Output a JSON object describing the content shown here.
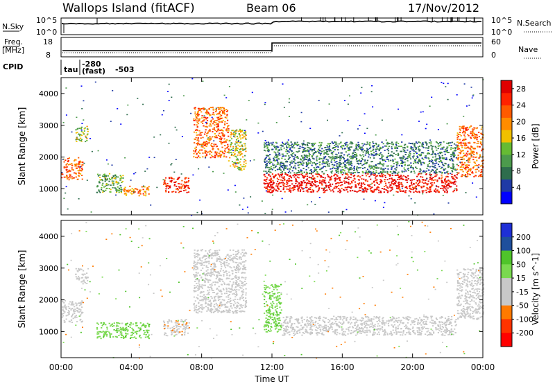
{
  "header": {
    "station": "Wallops Island (fitACF)",
    "beam": "Beam 06",
    "date": "17/Nov/2012"
  },
  "strip_labels": {
    "nsky": "N.Sky",
    "nsearch": "N.Search",
    "freq_line1": "Freq.",
    "freq_line2": "[MHz]",
    "nave": "Nave",
    "cpid": "CPID",
    "cpid_tau": "tau",
    "cpid_code1": "-280",
    "cpid_fast": "(fast)",
    "cpid_code2": "-503",
    "nsky_ticks": [
      "10^5",
      "10^0"
    ],
    "nsearch_ticks": [
      "10^5",
      "10^0"
    ],
    "freq_ticks": [
      "18",
      "8"
    ],
    "nave_ticks": [
      "60",
      "0"
    ]
  },
  "colors": {
    "power": [
      "#0000ff",
      "#1f3aa6",
      "#2e6d4d",
      "#4c9a4c",
      "#66bb33",
      "#f0c000",
      "#ff8c00",
      "#ff5a00",
      "#ff2200",
      "#e00000"
    ],
    "velocity": [
      "#1e2fd6",
      "#1f4f9c",
      "#2c7a3c",
      "#4fc42a",
      "#7ad94f",
      "#c8c8c8",
      "#c8c8c8",
      "#ffa500",
      "#ff7a00",
      "#ff3300",
      "#ff0000"
    ]
  },
  "chart_data": [
    {
      "type": "heatmap",
      "panel": "power",
      "xlabel": "Time UT",
      "ylabel": "Slant Range [km]",
      "x_ticks": [
        "00:00",
        "04:00",
        "08:00",
        "12:00",
        "16:00",
        "20:00",
        "00:00"
      ],
      "xlim_hours": [
        0,
        24
      ],
      "ylim_km": [
        180,
        4500
      ],
      "y_ticks": [
        1000,
        2000,
        3000,
        4000
      ],
      "colorbar": {
        "label": "Power [dB]",
        "ticks": [
          4,
          8,
          12,
          16,
          20,
          24,
          28
        ],
        "range": [
          0,
          30
        ]
      },
      "features": [
        {
          "t0": 0.0,
          "t1": 1.2,
          "r0": 1300,
          "r1": 2000,
          "value": 22
        },
        {
          "t0": 0.8,
          "t1": 1.5,
          "r0": 2500,
          "r1": 3000,
          "value": 14
        },
        {
          "t0": 2.0,
          "t1": 3.5,
          "r0": 900,
          "r1": 1500,
          "value": 12
        },
        {
          "t0": 3.5,
          "t1": 5.0,
          "r0": 800,
          "r1": 1100,
          "value": 20
        },
        {
          "t0": 5.8,
          "t1": 7.3,
          "r0": 900,
          "r1": 1400,
          "value": 26
        },
        {
          "t0": 7.5,
          "t1": 9.5,
          "r0": 2000,
          "r1": 3600,
          "value": 22
        },
        {
          "t0": 9.5,
          "t1": 10.5,
          "r0": 1600,
          "r1": 2900,
          "value": 16
        },
        {
          "t0": 11.5,
          "t1": 22.5,
          "r0": 900,
          "r1": 1500,
          "value": 28
        },
        {
          "t0": 11.5,
          "t1": 22.5,
          "r0": 1500,
          "r1": 2500,
          "value": 8
        },
        {
          "t0": 22.5,
          "t1": 24.0,
          "r0": 1400,
          "r1": 3000,
          "value": 22
        }
      ]
    },
    {
      "type": "heatmap",
      "panel": "velocity",
      "xlabel": "Time UT",
      "ylabel": "Slant Range [km]",
      "x_ticks": [
        "00:00",
        "04:00",
        "08:00",
        "12:00",
        "16:00",
        "20:00",
        "00:00"
      ],
      "xlim_hours": [
        0,
        24
      ],
      "ylim_km": [
        180,
        4500
      ],
      "y_ticks": [
        1000,
        2000,
        3000,
        4000
      ],
      "colorbar": {
        "label": "Velocity [m s^-1]",
        "ticks": [
          200,
          100,
          50,
          15,
          -15,
          -50,
          -100,
          -200
        ]
      },
      "features": [
        {
          "t0": 0.0,
          "t1": 1.2,
          "r0": 1300,
          "r1": 2000,
          "value": 0
        },
        {
          "t0": 0.8,
          "t1": 1.5,
          "r0": 2500,
          "r1": 3000,
          "value": 0
        },
        {
          "t0": 2.0,
          "t1": 5.0,
          "r0": 800,
          "r1": 1300,
          "value": 40
        },
        {
          "t0": 5.8,
          "t1": 7.3,
          "r0": 900,
          "r1": 1400,
          "value": -40
        },
        {
          "t0": 7.5,
          "t1": 10.5,
          "r0": 1600,
          "r1": 3600,
          "value": 0
        },
        {
          "t0": 11.5,
          "t1": 12.5,
          "r0": 1000,
          "r1": 2500,
          "value": 40
        },
        {
          "t0": 12.5,
          "t1": 22.5,
          "r0": 900,
          "r1": 1500,
          "value": 0
        },
        {
          "t0": 22.5,
          "t1": 24.0,
          "r0": 1400,
          "r1": 3000,
          "value": 0
        }
      ]
    }
  ]
}
